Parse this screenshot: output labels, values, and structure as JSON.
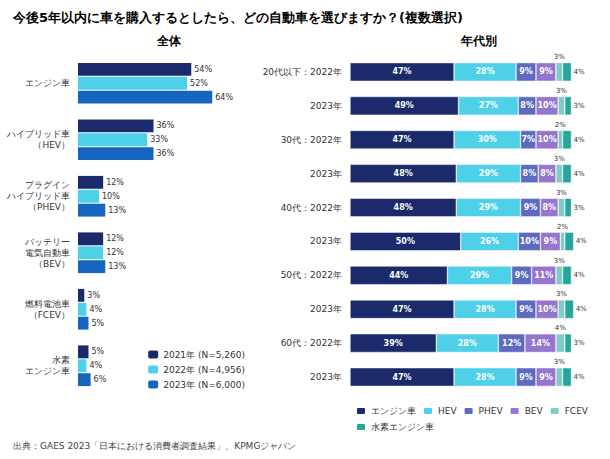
{
  "title": "今後5年以内に車を購入するとしたら、どの自動車を選びますか？(複数選択)",
  "annotations": [
    "出典：GAES 2023「日本における消費者調査結果」、KPMGジャパン"
  ],
  "chart_data": [
    {
      "type": "bar",
      "orientation": "horizontal",
      "title": "全体",
      "categories": [
        "エンジン車",
        "ハイブリッド車\n（HEV）",
        "プラグイン\nハイブリッド車\n（PHEV）",
        "バッテリー\n電気自動車\n（BEV）",
        "燃料電池車\n（FCEV）",
        "水素\nエンジン車"
      ],
      "series": [
        {
          "name": "2021年 (N=5,260)",
          "color": "#1b2a6b",
          "values": [
            54,
            36,
            12,
            12,
            3,
            5
          ],
          "value_labels": [
            "54%",
            "36%",
            "12%",
            "12%",
            "3%",
            "5%"
          ]
        },
        {
          "name": "2022年 (N=4,956)",
          "color": "#4dd0e8",
          "values": [
            52,
            33,
            10,
            12,
            4,
            4
          ],
          "value_labels": [
            "52%",
            "33%",
            "10%",
            "12%",
            "4%",
            "4%"
          ]
        },
        {
          "name": "2023年 (N=6,000)",
          "color": "#1565c0",
          "values": [
            64,
            36,
            13,
            13,
            5,
            6
          ],
          "value_labels": [
            "64%",
            "36%",
            "13%",
            "13%",
            "5%",
            "6%"
          ]
        }
      ],
      "xlim": [
        0,
        82
      ],
      "tick_labels": "y",
      "data_labels": true,
      "legend": "lower right",
      "grid": false
    },
    {
      "type": "bar",
      "orientation": "horizontal",
      "stacked": true,
      "title": "年代別",
      "categories": [
        "20代以下：2022年",
        "2023年",
        "30代：2022年",
        "2023年",
        "40代：2022年",
        "2023年",
        "50代：2022年",
        "2023年",
        "60代：2022年",
        "2023年"
      ],
      "series": [
        {
          "name": "エンジン車",
          "color": "#1b2a6b",
          "values": [
            47,
            49,
            47,
            48,
            48,
            50,
            44,
            47,
            39,
            47
          ],
          "value_labels": [
            "47%",
            "49%",
            "47%",
            "48%",
            "48%",
            "50%",
            "44%",
            "47%",
            "39%",
            "47%"
          ]
        },
        {
          "name": "HEV",
          "color": "#4dd0e8",
          "values": [
            28,
            27,
            30,
            29,
            29,
            26,
            29,
            28,
            28,
            28
          ],
          "value_labels": [
            "28%",
            "27%",
            "30%",
            "29%",
            "29%",
            "26%",
            "29%",
            "28%",
            "28%",
            "28%"
          ]
        },
        {
          "name": "PHEV",
          "color": "#5c6bc0",
          "values": [
            9,
            8,
            7,
            8,
            9,
            10,
            9,
            9,
            12,
            9
          ],
          "value_labels": [
            "9%",
            "8%",
            "7%",
            "8%",
            "9%",
            "10%",
            "9%",
            "9%",
            "12%",
            "9%"
          ]
        },
        {
          "name": "BEV",
          "color": "#9575cd",
          "values": [
            9,
            10,
            10,
            8,
            8,
            9,
            11,
            10,
            14,
            9
          ],
          "value_labels": [
            "9%",
            "10%",
            "10%",
            "8%",
            "8%",
            "9%",
            "11%",
            "10%",
            "14%",
            "9%"
          ]
        },
        {
          "name": "FCEV",
          "color": "#80cbc4",
          "values": [
            3,
            3,
            2,
            3,
            3,
            2,
            3,
            3,
            4,
            3
          ],
          "value_labels": [
            "3%",
            "3%",
            "2%",
            "3%",
            "3%",
            "2%",
            "3%",
            "3%",
            "4%",
            "3%"
          ]
        },
        {
          "name": "水素エンジン車",
          "color": "#26a69a",
          "values": [
            4,
            3,
            4,
            4,
            3,
            4,
            4,
            4,
            3,
            4
          ],
          "value_labels": [
            "4%",
            "3%",
            "4%",
            "4%",
            "3%",
            "4%",
            "4%",
            "4%",
            "3%",
            "4%"
          ]
        }
      ],
      "xlim": [
        0,
        112
      ],
      "tick_labels": "y",
      "data_labels": true,
      "legend": "bottom",
      "grid": false
    }
  ]
}
